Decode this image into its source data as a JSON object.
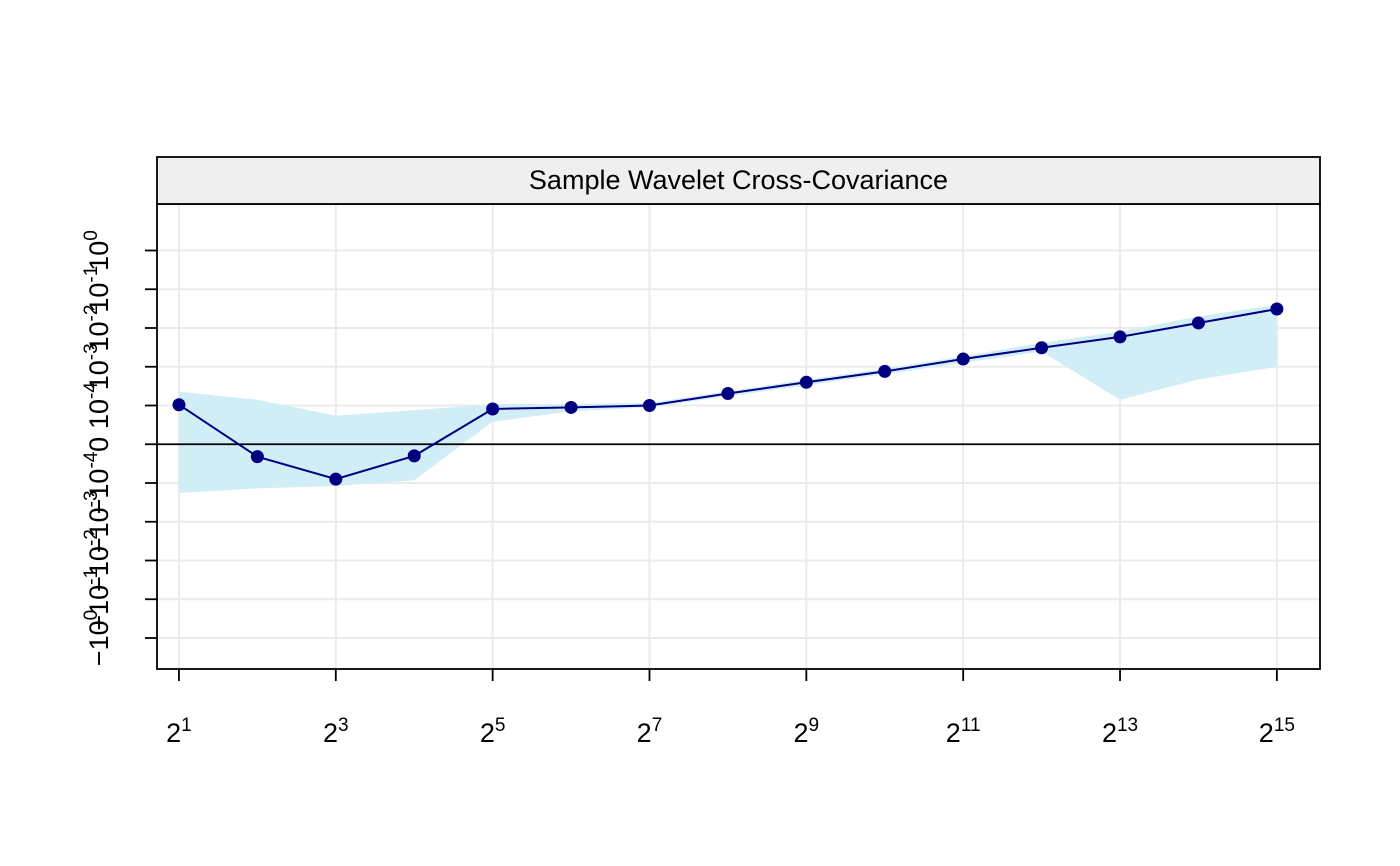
{
  "chart_data": {
    "type": "line",
    "title": "Sample Wavelet Cross-Covariance",
    "xlabel": "",
    "ylabel": "",
    "x_scale": "log2",
    "x_range_exponent": [
      0.72,
      15.55
    ],
    "x": [
      2,
      4,
      8,
      16,
      32,
      64,
      128,
      256,
      512,
      1024,
      2048,
      4096,
      8192,
      16384,
      32768
    ],
    "series": [
      {
        "values_code": [
          1.02,
          -0.32,
          -0.9,
          -0.3,
          0.91,
          0.95,
          1.0,
          1.31,
          1.6,
          1.88,
          2.2,
          2.49,
          2.77,
          3.13,
          3.49
        ],
        "ci_lower_code": [
          -1.26,
          -1.14,
          -1.08,
          -0.93,
          0.58,
          0.85,
          0.95,
          1.24,
          1.52,
          1.81,
          2.1,
          2.39,
          1.15,
          1.67,
          2.0
        ],
        "ci_upper_code": [
          1.36,
          1.15,
          0.74,
          0.88,
          1.04,
          1.04,
          1.07,
          1.37,
          1.67,
          1.95,
          2.27,
          2.62,
          2.91,
          3.3,
          3.6
        ]
      }
    ],
    "x_ticks": [
      {
        "base": "2",
        "exp": "1",
        "value": 2
      },
      {
        "base": "2",
        "exp": "3",
        "value": 8
      },
      {
        "base": "2",
        "exp": "5",
        "value": 32
      },
      {
        "base": "2",
        "exp": "7",
        "value": 128
      },
      {
        "base": "2",
        "exp": "9",
        "value": 512
      },
      {
        "base": "2",
        "exp": "11",
        "value": 2048
      },
      {
        "base": "2",
        "exp": "13",
        "value": 8192
      },
      {
        "base": "2",
        "exp": "15",
        "value": 32768
      }
    ],
    "y_ticks": [
      {
        "label": "10^0",
        "pos": 5
      },
      {
        "label": "10^-1",
        "pos": 4
      },
      {
        "label": "10^-2",
        "pos": 3
      },
      {
        "label": "10^-3",
        "pos": 2
      },
      {
        "label": "10^-4",
        "pos": 1
      },
      {
        "label": "0",
        "pos": 0
      },
      {
        "label": "-10^-4",
        "pos": -1
      },
      {
        "label": "-10^-3",
        "pos": -2
      },
      {
        "label": "-10^-2",
        "pos": -3
      },
      {
        "label": "-10^-1",
        "pos": -4
      },
      {
        "label": "-10^0",
        "pos": -5
      }
    ],
    "y_range_code": [
      -5.8,
      6.2
    ],
    "zero_line": true,
    "grid": true,
    "colors": {
      "line": "#000080",
      "points": "#000080",
      "band": "#d1eef6",
      "grid": "#ebebeb",
      "strip": "#efefef"
    }
  }
}
